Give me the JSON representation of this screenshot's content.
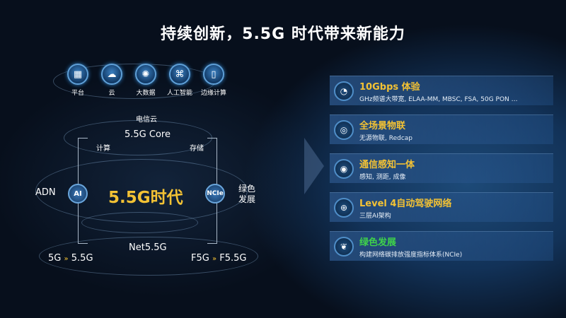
{
  "title": "持续创新，5.5G 时代带来新能力",
  "top_icons": [
    {
      "label": "平台",
      "icon": "platform-icon"
    },
    {
      "label": "云",
      "icon": "cloud-icon"
    },
    {
      "label": "大数据",
      "icon": "big-data-icon"
    },
    {
      "label": "人工智能",
      "icon": "ai-chip-icon"
    },
    {
      "label": "边缘计算",
      "icon": "edge-computing-icon"
    }
  ],
  "diagram": {
    "telecom_cloud": "电信云",
    "core": "5.5G Core",
    "compute": "计算",
    "storage": "存储",
    "adn": "ADN",
    "ai_node": "AI",
    "center": "5.5G时代",
    "ncie_node": "NCIe",
    "green_line1": "绿色",
    "green_line2": "发展",
    "net": "Net5.5G",
    "left_from": "5G",
    "left_to": "5.5G",
    "right_from": "F5G",
    "right_to": "F5.5G"
  },
  "capabilities": [
    {
      "title": "10Gbps 体验",
      "subtitle": "GHz频谱大带宽, ELAA-MM, MBSC, FSA, 50G PON …",
      "icon": "speed-gauge-icon",
      "color": "#f3c234"
    },
    {
      "title": "全场景物联",
      "subtitle": "无源物联, Redcap",
      "icon": "iot-icon",
      "color": "#f3c234"
    },
    {
      "title": "通信感知一体",
      "subtitle": "感知, 测距, 成像",
      "icon": "sensing-icon",
      "color": "#f3c234"
    },
    {
      "title": "Level 4自动驾驶网络",
      "subtitle": "三层AI架构",
      "icon": "network-globe-icon",
      "color": "#f3c234"
    },
    {
      "title": "绿色发展",
      "subtitle": "构建网络碳排放强度指标体系(NCIe)",
      "icon": "leaf-icon",
      "color": "#3fd34a"
    }
  ]
}
